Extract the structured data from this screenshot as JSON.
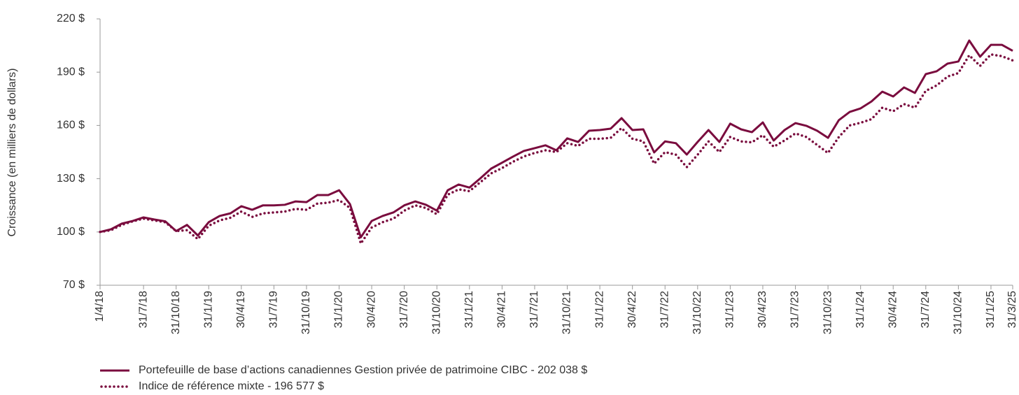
{
  "chart_data": {
    "type": "line",
    "y_label": "Croissance (en milliers de dollars)",
    "categories": [
      "1/4/18",
      null,
      null,
      null,
      "31/7/18",
      null,
      null,
      "31/10/18",
      null,
      null,
      "31/1/19",
      null,
      null,
      "30/4/19",
      null,
      null,
      "31/7/19",
      null,
      null,
      "31/10/19",
      null,
      null,
      "31/1/20",
      null,
      null,
      "30/4/20",
      null,
      null,
      "31/7/20",
      null,
      null,
      "31/10/20",
      null,
      null,
      "31/1/21",
      null,
      null,
      "30/4/21",
      null,
      null,
      "31/7/21",
      null,
      null,
      "31/10/21",
      null,
      null,
      "31/1/22",
      null,
      null,
      "30/4/22",
      null,
      null,
      "31/7/22",
      null,
      null,
      "31/10/22",
      null,
      null,
      "31/1/23",
      null,
      null,
      "30/4/23",
      null,
      null,
      "31/7/23",
      null,
      null,
      "31/10/23",
      null,
      null,
      "31/1/24",
      null,
      null,
      "30/4/24",
      null,
      null,
      "31/7/24",
      null,
      null,
      "31/10/24",
      null,
      null,
      "31/1/25",
      null,
      "31/3/25"
    ],
    "series": [
      {
        "name": "Portefeuille de base d’actions canadiennes Gestion privée de patrimoine CIBC - 202 038 $",
        "color": "#7a0c3e",
        "style": "solid",
        "values": [
          100,
          101.5,
          104.7,
          106.2,
          108.2,
          107,
          106,
          100.5,
          104,
          98,
          105.5,
          109,
          110.5,
          114.5,
          112.5,
          115,
          115,
          115.3,
          117.2,
          116.8,
          120.8,
          120.8,
          123.5,
          115.7,
          97,
          106.2,
          109,
          111,
          115,
          117.2,
          115.3,
          112,
          123.5,
          126.7,
          125,
          130.2,
          135.7,
          139,
          142.4,
          145.6,
          147.2,
          148.8,
          146,
          152.7,
          150.7,
          157,
          157.4,
          158.2,
          164.1,
          157.4,
          157.8,
          144.8,
          151,
          150,
          143.6,
          150.7,
          157.4,
          150.7,
          161,
          157.8,
          156.2,
          161.7,
          151.5,
          157.4,
          161.3,
          159.8,
          157,
          153,
          163,
          167.6,
          169.6,
          173.5,
          179,
          176.3,
          181.4,
          178.3,
          188.9,
          190.5,
          194.8,
          196,
          207.8,
          198.7,
          205.4,
          205.4,
          202
        ]
      },
      {
        "name": "Indice de référence mixte - 196 577 $",
        "color": "#7a0c3e",
        "style": "dotted",
        "values": [
          100,
          101,
          104,
          106,
          107.5,
          106.5,
          105.5,
          100.5,
          101,
          96,
          103.5,
          106.5,
          108,
          111.5,
          108.5,
          110.5,
          111,
          111.5,
          113,
          112.5,
          116,
          116.5,
          118,
          113.5,
          93.5,
          102.5,
          105.5,
          107.5,
          112,
          115,
          113.5,
          110,
          121,
          124,
          123,
          128,
          133,
          136,
          139.5,
          142.5,
          144.5,
          146,
          145,
          150,
          148.5,
          152.5,
          152.5,
          153,
          158.5,
          152.5,
          151,
          138.5,
          145,
          143.5,
          136.5,
          143.5,
          151,
          145,
          153.5,
          151,
          150.5,
          154.5,
          148,
          151.5,
          155.5,
          153.5,
          149,
          144.5,
          153.5,
          160,
          161.5,
          163.5,
          170,
          168,
          172,
          170,
          179.5,
          182.5,
          187.5,
          189.5,
          199.5,
          193.5,
          200,
          199,
          196.6
        ]
      }
    ],
    "ylim": [
      70,
      220
    ],
    "yticks": [
      {
        "value": 70,
        "label": "70 $"
      },
      {
        "value": 100,
        "label": "100 $"
      },
      {
        "value": 130,
        "label": "130 $"
      },
      {
        "value": 160,
        "label": "160 $"
      },
      {
        "value": 190,
        "label": "190 $"
      },
      {
        "value": 220,
        "label": "220 $"
      }
    ],
    "grid": false
  }
}
